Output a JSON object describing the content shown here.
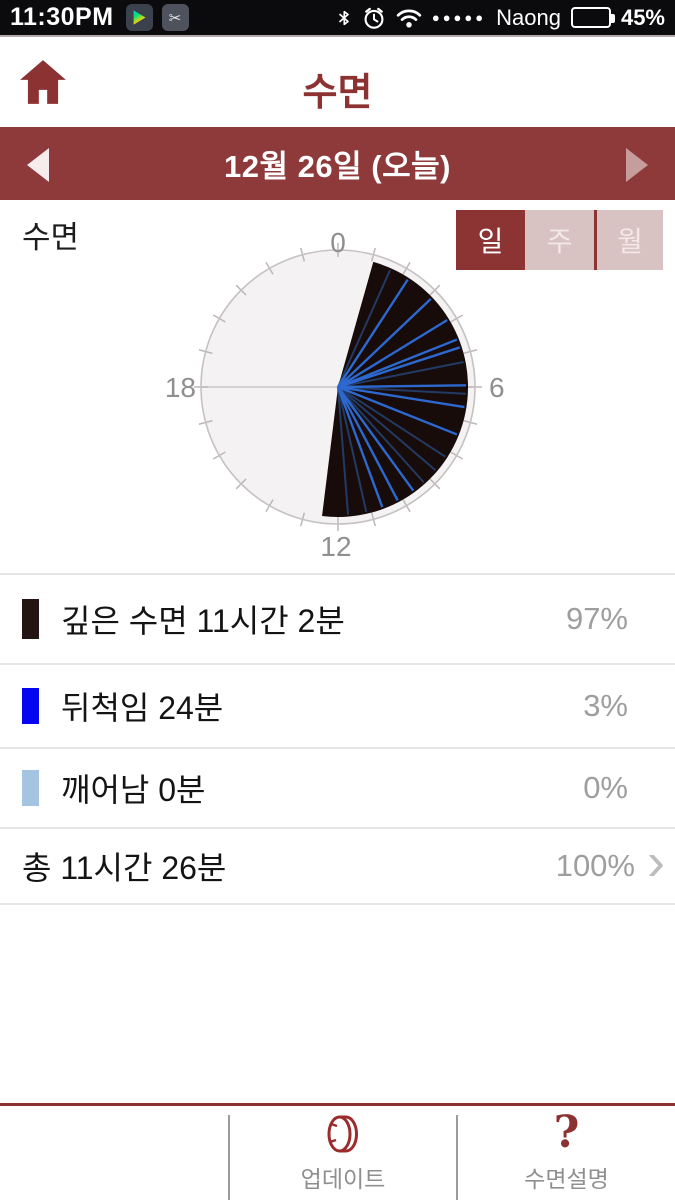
{
  "status_bar": {
    "time": "11:30PM",
    "carrier": "Naong",
    "battery_percent": "45%",
    "battery_level": 45,
    "signal_dots": "●●●●●",
    "scissors_glyph": "✂",
    "icons": [
      "play-store-icon",
      "screenshot-icon",
      "bluetooth-icon",
      "alarm-clock-icon",
      "wifi-icon",
      "battery-icon"
    ]
  },
  "header": {
    "title": "수면"
  },
  "date_nav": {
    "label": "12월 26일 (오늘)"
  },
  "chart_section": {
    "label": "수면",
    "period_tabs": [
      {
        "label": "일",
        "selected": true
      },
      {
        "label": "주",
        "selected": false
      },
      {
        "label": "월",
        "selected": false
      }
    ]
  },
  "chart_data": {
    "type": "polar-clock",
    "hours_total": 24,
    "tick_labels": {
      "top": "0",
      "right": "6",
      "bottom": "12",
      "left": "18"
    },
    "sleep_start_hour": 1.05,
    "sleep_end_hour": 12.47,
    "toss_event_hours_bright": [
      2.2,
      3.1,
      3.9,
      4.55,
      4.8,
      5.95,
      6.6,
      7.45,
      9.6,
      10.15,
      10.65
    ],
    "toss_event_hours_dim": [
      1.6,
      5.25,
      6.2,
      8.2,
      8.7,
      9.2,
      11.15,
      11.7
    ],
    "colors": {
      "deep_sleep": "#170c0a",
      "toss_bright": "#2d68cf",
      "toss_dim": "#243f6e",
      "face": "#f4f2f2",
      "ring": "#c6c2c2",
      "axis": "#ccc8c8",
      "tick": "#bdb8b8"
    }
  },
  "legend": {
    "rows": [
      {
        "swatch": "#241512",
        "label": "깊은 수면 11시간 2분",
        "percent": "97%"
      },
      {
        "swatch": "#0505f0",
        "label": "뒤척임 24분",
        "percent": "3%"
      },
      {
        "swatch": "#a5c4e1",
        "label": "깨어남 0분",
        "percent": "0%"
      },
      {
        "swatch": null,
        "label": "총 11시간 26분",
        "percent": "100%",
        "chevron": "›"
      }
    ]
  },
  "bottom_bar": {
    "update_label": "업데이트",
    "help_label": "수면설명",
    "help_glyph": "?"
  }
}
